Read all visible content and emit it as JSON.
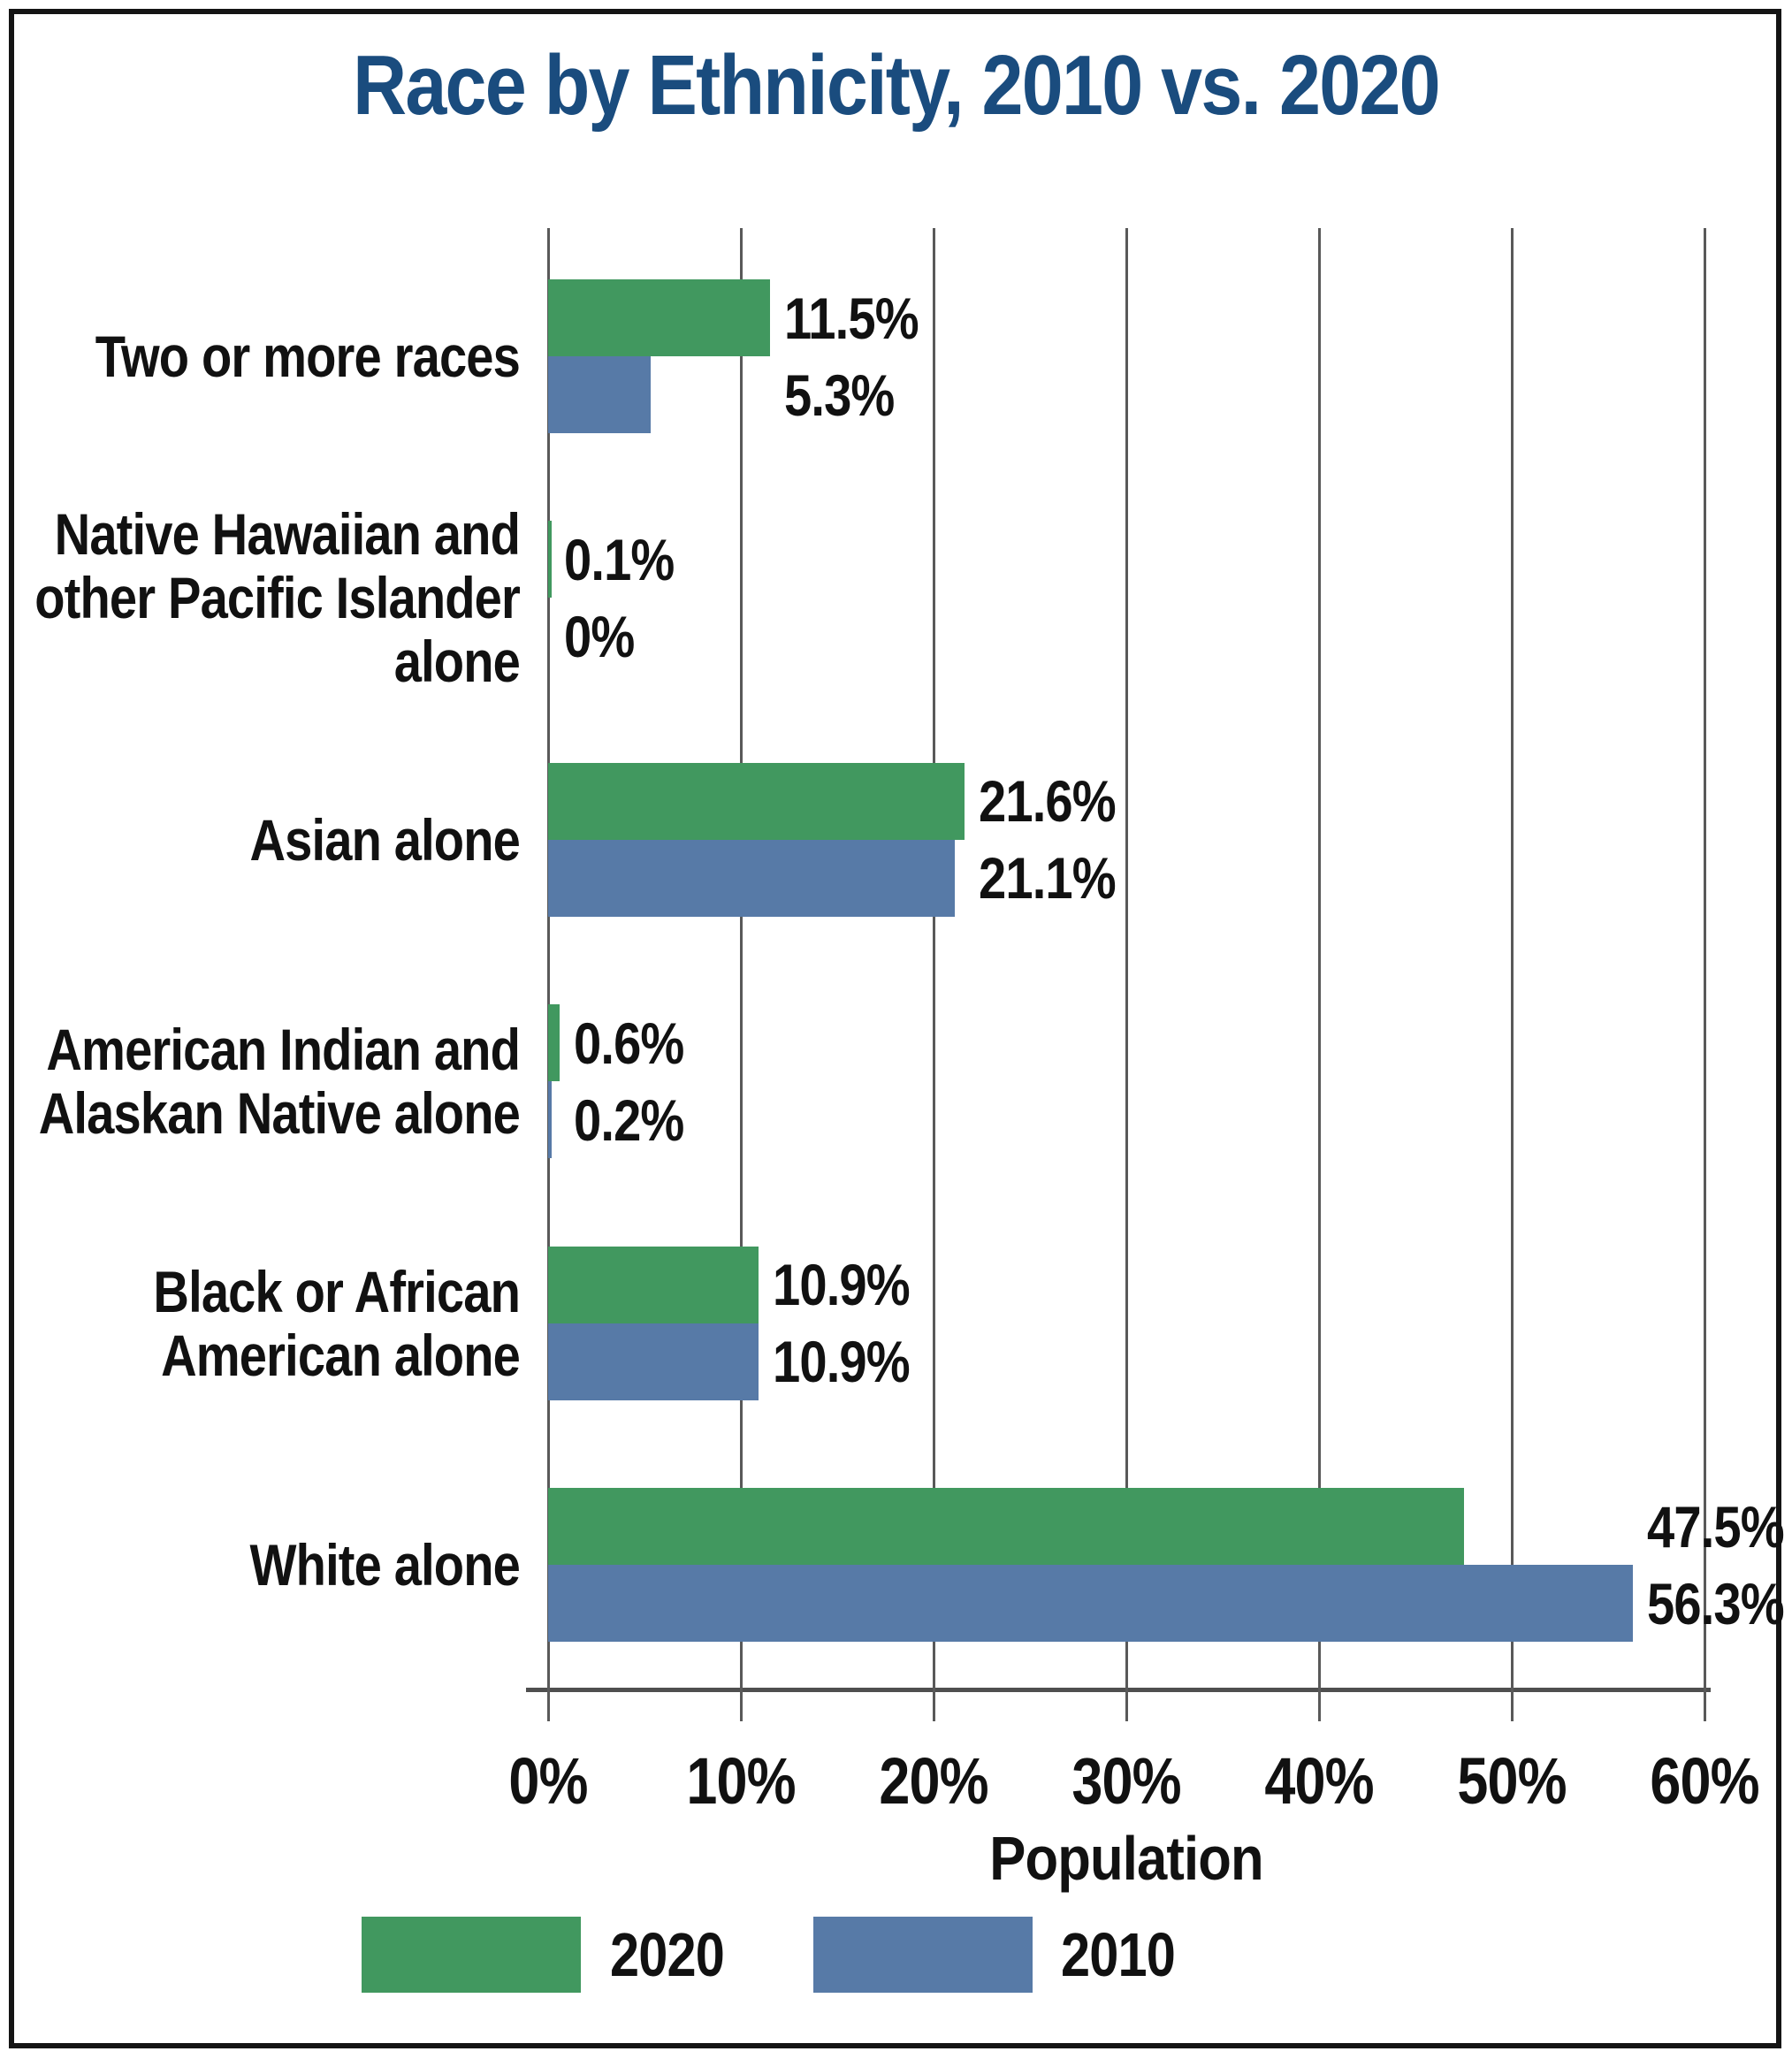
{
  "title": "Race by Ethnicity, 2010 vs. 2020",
  "colors": {
    "title": "#1a4c7e",
    "bar_2020": "#41985f",
    "bar_2010": "#577aa7",
    "gridline": "#595959",
    "axis": "#4f4f4f",
    "text": "#111111"
  },
  "chart_data": {
    "type": "bar",
    "orientation": "horizontal",
    "title": "Race by Ethnicity, 2010 vs. 2020",
    "categories": [
      "Two or more races",
      "Native Hawaiian and other Pacific Islander alone",
      "Asian alone",
      "American Indian and Alaskan Native alone",
      "Black or African American alone",
      "White alone"
    ],
    "category_label_lines": [
      [
        "Two or more races"
      ],
      [
        "Native Hawaiian and",
        "other Pacific Islander",
        "alone"
      ],
      [
        "Asian alone"
      ],
      [
        "American Indian and",
        "Alaskan Native alone"
      ],
      [
        "Black or African",
        "American alone"
      ],
      [
        "White alone"
      ]
    ],
    "series": [
      {
        "name": "2020",
        "color": "#41985f",
        "values": [
          11.5,
          0.1,
          21.6,
          0.6,
          10.9,
          47.5
        ],
        "value_labels": [
          "11.5%",
          "0.1%",
          "21.6%",
          "0.6%",
          "10.9%",
          "47.5%"
        ]
      },
      {
        "name": "2010",
        "color": "#577aa7",
        "values": [
          5.3,
          0,
          21.1,
          0.2,
          10.9,
          56.3
        ],
        "value_labels": [
          "5.3%",
          "0%",
          "21.1%",
          "0.2%",
          "10.9%",
          "56.3%"
        ]
      }
    ],
    "xlabel": "Population",
    "x_ticks": [
      "0%",
      "10%",
      "20%",
      "30%",
      "40%",
      "50%",
      "60%"
    ],
    "xlim": [
      0,
      60
    ],
    "grid": true,
    "legend_position": "bottom",
    "legend": [
      {
        "label": "2020",
        "color": "#41985f"
      },
      {
        "label": "2010",
        "color": "#577aa7"
      }
    ]
  }
}
